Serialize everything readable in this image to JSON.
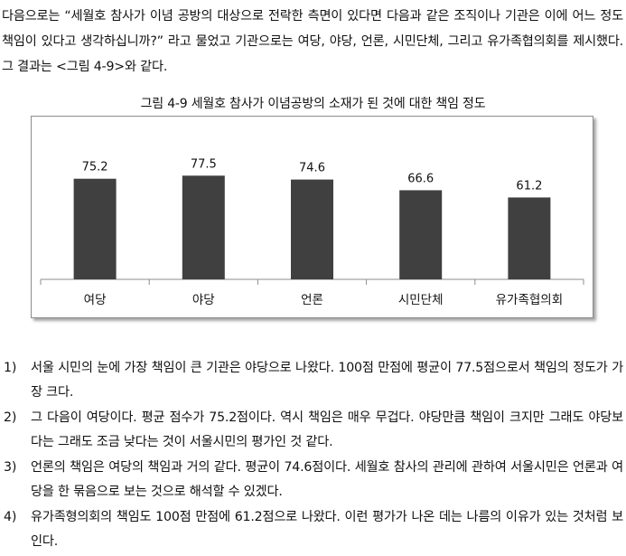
{
  "intro": {
    "text": "다음으로는 “세월호 참사가 이념 공방의 대상으로 전락한 측면이 있다면 다음과 같은 조직이나 기관은 이에 어느 정도 책임이 있다고 생각하십니까?” 라고 물었고 기관으로는 여당, 야당, 언론, 시민단체, 그리고 유가족협의회를 제시했다. 그 결과는 <그림 4-9>와 같다."
  },
  "figure": {
    "caption": "그림 4-9 세월호 참사가 이념공방의 소재가 된 것에 대한 책임 정도"
  },
  "chart_data": {
    "type": "bar",
    "title": "그림 4-9 세월호 참사가 이념공방의 소재가 된 것에 대한 책임 정도",
    "categories": [
      "여당",
      "야당",
      "언론",
      "시민단체",
      "유가족협의회"
    ],
    "values": [
      75.2,
      77.5,
      74.6,
      66.6,
      61.2
    ],
    "data_labels": [
      "75.2",
      "77.5",
      "74.6",
      "66.6",
      "61.2"
    ],
    "ylim": [
      0,
      100
    ],
    "grid": false,
    "bar_color": "#404040",
    "xlabel": "",
    "ylabel": ""
  },
  "list": [
    {
      "num": "1)",
      "text": "서울 시민의 눈에 가장 책임이 큰 기관은 야당으로 나왔다. 100점 만점에 평균이 77.5점으로서 책임의 정도가 가장 크다."
    },
    {
      "num": "2)",
      "text": "그 다음이 여당이다. 평균 점수가 75.2점이다. 역시 책임은 매우 무겁다. 야당만큼 책임이 크지만 그래도 야당보다는 그래도 조금 낮다는 것이 서울시민의 평가인 것 같다."
    },
    {
      "num": "3)",
      "text": "언론의 책임은 여당의 책임과 거의 같다. 평균이 74.6점이다. 세월호 참사의 관리에 관하여 서울시민은 언론과 여당을 한 묶음으로 보는 것으로 해석할 수 있겠다."
    },
    {
      "num": "4)",
      "text": "유가족형의회의 책임도 100점 만점에 61.2점으로 나왔다. 이런 평가가 나온 데는 나름의 이유가 있는 것처럼 보인다."
    }
  ]
}
